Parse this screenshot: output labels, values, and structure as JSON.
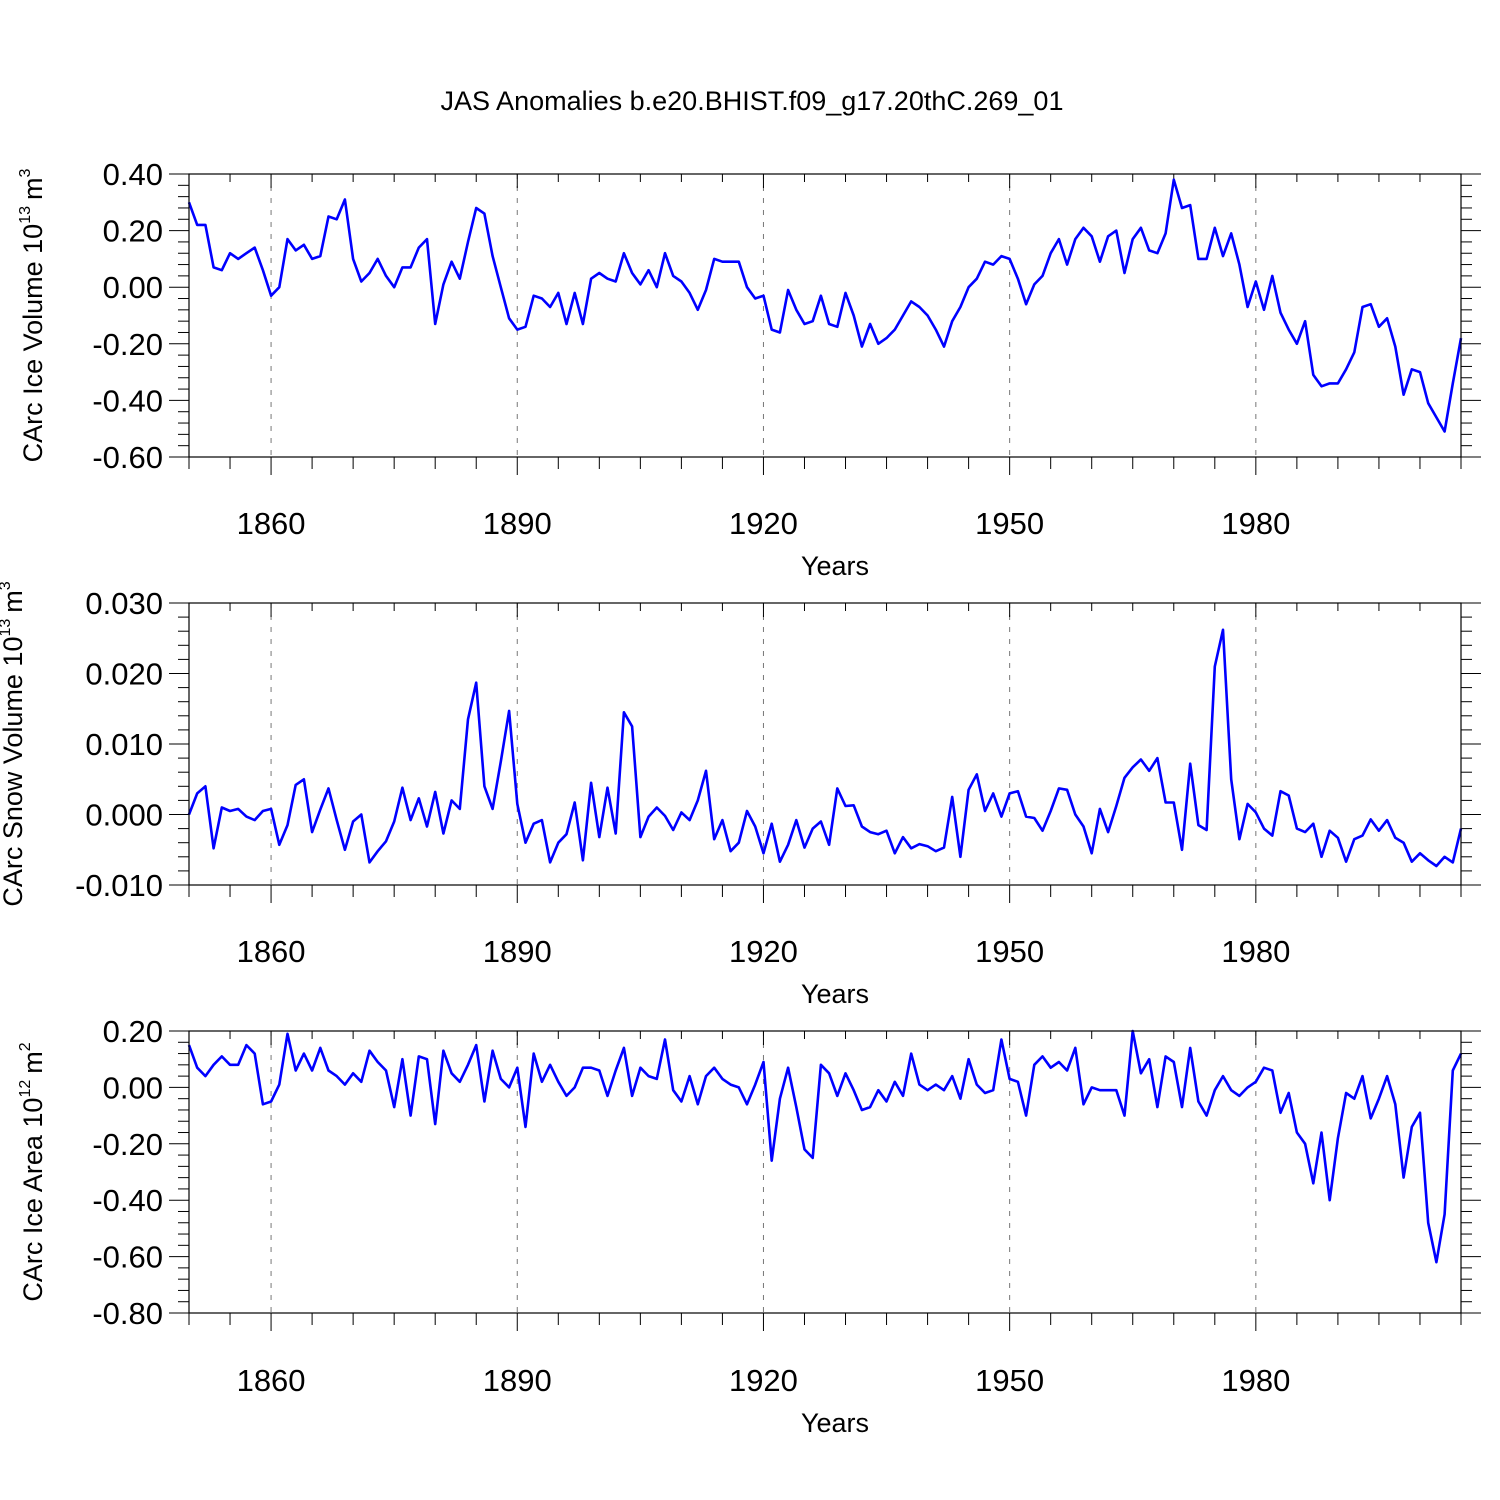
{
  "title": "JAS Anomalies b.e20.BHIST.f09_g17.20thC.269_01",
  "chart_data": [
    {
      "type": "line",
      "ylabel": "CArc Ice Volume 10",
      "ylabel_exp": "13",
      "ylabel_unit": "m",
      "ylabel_unit_exp": "3",
      "xlabel": "Years",
      "xlim": [
        1850,
        2005
      ],
      "ylim": [
        -0.6,
        0.4
      ],
      "y_ticks": [
        0.4,
        0.2,
        0.0,
        -0.2,
        -0.4,
        -0.6
      ],
      "y_tick_labels": [
        "0.40",
        "0.20",
        "0.00",
        "-0.20",
        "-0.40",
        "-0.60"
      ],
      "x_ticks": [
        1860,
        1890,
        1920,
        1950,
        1980
      ],
      "x_tick_labels": [
        "1860",
        "1890",
        "1920",
        "1950",
        "1980"
      ],
      "grid": "vertical dashed at major x ticks",
      "color": "#0000ff",
      "x_start": 1850,
      "values": [
        0.3,
        0.22,
        0.22,
        0.07,
        0.06,
        0.12,
        0.1,
        0.12,
        0.14,
        0.06,
        -0.03,
        0.0,
        0.17,
        0.13,
        0.15,
        0.1,
        0.11,
        0.25,
        0.24,
        0.31,
        0.1,
        0.02,
        0.05,
        0.1,
        0.04,
        0.0,
        0.07,
        0.07,
        0.14,
        0.17,
        -0.13,
        0.01,
        0.09,
        0.03,
        0.16,
        0.28,
        0.26,
        0.11,
        0.0,
        -0.11,
        -0.15,
        -0.14,
        -0.03,
        -0.04,
        -0.07,
        -0.02,
        -0.13,
        -0.02,
        -0.13,
        0.03,
        0.05,
        0.03,
        0.02,
        0.12,
        0.05,
        0.01,
        0.06,
        0.0,
        0.12,
        0.04,
        0.02,
        -0.02,
        -0.08,
        -0.01,
        0.1,
        0.09,
        0.09,
        0.09,
        0.0,
        -0.04,
        -0.03,
        -0.15,
        -0.16,
        -0.01,
        -0.08,
        -0.13,
        -0.12,
        -0.03,
        -0.13,
        -0.14,
        -0.02,
        -0.1,
        -0.21,
        -0.13,
        -0.2,
        -0.18,
        -0.15,
        -0.1,
        -0.05,
        -0.07,
        -0.1,
        -0.15,
        -0.21,
        -0.12,
        -0.07,
        0.0,
        0.03,
        0.09,
        0.08,
        0.11,
        0.1,
        0.03,
        -0.06,
        0.01,
        0.04,
        0.12,
        0.17,
        0.08,
        0.17,
        0.21,
        0.18,
        0.09,
        0.18,
        0.2,
        0.05,
        0.17,
        0.21,
        0.13,
        0.12,
        0.19,
        0.38,
        0.28,
        0.29,
        0.1,
        0.1,
        0.21,
        0.11,
        0.19,
        0.08,
        -0.07,
        0.02,
        -0.08,
        0.04,
        -0.09,
        -0.15,
        -0.2,
        -0.12,
        -0.31,
        -0.35,
        -0.34,
        -0.34,
        -0.29,
        -0.23,
        -0.07,
        -0.06,
        -0.14,
        -0.11,
        -0.21,
        -0.38,
        -0.29,
        -0.3,
        -0.41,
        -0.46,
        -0.51,
        -0.34,
        -0.18
      ]
    },
    {
      "type": "line",
      "ylabel": "CArc Snow Volume 10",
      "ylabel_exp": "13",
      "ylabel_unit": "m",
      "ylabel_unit_exp": "3",
      "xlabel": "Years",
      "xlim": [
        1850,
        2005
      ],
      "ylim": [
        -0.01,
        0.03
      ],
      "y_ticks": [
        0.03,
        0.02,
        0.01,
        0.0,
        -0.01
      ],
      "y_tick_labels": [
        "0.030",
        "0.020",
        "0.010",
        "0.000",
        "-0.010"
      ],
      "x_ticks": [
        1860,
        1890,
        1920,
        1950,
        1980
      ],
      "x_tick_labels": [
        "1860",
        "1890",
        "1920",
        "1950",
        "1980"
      ],
      "grid": "vertical dashed at major x ticks",
      "color": "#0000ff",
      "x_start": 1850,
      "values": [
        0.0,
        0.003,
        0.004,
        -0.0048,
        0.001,
        0.0005,
        0.0008,
        -0.0003,
        -0.0008,
        0.0005,
        0.0008,
        -0.0043,
        -0.0015,
        0.0042,
        0.005,
        -0.0025,
        0.0007,
        0.0037,
        -0.0008,
        -0.005,
        -0.001,
        0.0,
        -0.0068,
        -0.0052,
        -0.0038,
        -0.001,
        0.0038,
        -0.0008,
        0.0023,
        -0.0017,
        0.0032,
        -0.0027,
        0.002,
        0.0008,
        0.0135,
        0.0187,
        0.004,
        0.0008,
        0.0075,
        0.0147,
        0.0015,
        -0.004,
        -0.0013,
        -0.0008,
        -0.0068,
        -0.004,
        -0.0028,
        0.0017,
        -0.0065,
        0.0045,
        -0.0032,
        0.0038,
        -0.0027,
        0.0145,
        0.0125,
        -0.0032,
        -0.0003,
        0.001,
        -0.0002,
        -0.0022,
        0.0003,
        -0.0008,
        0.002,
        0.0062,
        -0.0035,
        -0.0008,
        -0.0052,
        -0.004,
        0.0005,
        -0.0017,
        -0.0055,
        -0.0013,
        -0.0067,
        -0.0043,
        -0.0008,
        -0.0047,
        -0.002,
        -0.001,
        -0.0043,
        0.0037,
        0.0012,
        0.0013,
        -0.0017,
        -0.0025,
        -0.0028,
        -0.0023,
        -0.0055,
        -0.0032,
        -0.0048,
        -0.0042,
        -0.0045,
        -0.0052,
        -0.0047,
        0.0025,
        -0.006,
        0.0035,
        0.0057,
        0.0005,
        0.003,
        -0.0003,
        0.003,
        0.0033,
        -0.0003,
        -0.0005,
        -0.0023,
        0.0005,
        0.0037,
        0.0035,
        0.0,
        -0.0017,
        -0.0055,
        0.0008,
        -0.0025,
        0.0012,
        0.0052,
        0.0067,
        0.0078,
        0.0062,
        0.008,
        0.0017,
        0.0017,
        -0.005,
        0.0072,
        -0.0015,
        -0.0022,
        0.021,
        0.0262,
        0.005,
        -0.0035,
        0.0015,
        0.0003,
        -0.002,
        -0.003,
        0.0033,
        0.0027,
        -0.002,
        -0.0025,
        -0.0013,
        -0.006,
        -0.0023,
        -0.0033,
        -0.0067,
        -0.0035,
        -0.003,
        -0.0007,
        -0.0023,
        -0.0008,
        -0.0033,
        -0.004,
        -0.0067,
        -0.0055,
        -0.0065,
        -0.0073,
        -0.006,
        -0.0068,
        -0.002
      ]
    },
    {
      "type": "line",
      "ylabel": "CArc Ice Area 10",
      "ylabel_exp": "12",
      "ylabel_unit": "m",
      "ylabel_unit_exp": "2",
      "xlabel": "Years",
      "xlim": [
        1850,
        2005
      ],
      "ylim": [
        -0.8,
        0.2
      ],
      "y_ticks": [
        0.2,
        0.0,
        -0.2,
        -0.4,
        -0.6,
        -0.8
      ],
      "y_tick_labels": [
        "0.20",
        "0.00",
        "-0.20",
        "-0.40",
        "-0.60",
        "-0.80"
      ],
      "x_ticks": [
        1860,
        1890,
        1920,
        1950,
        1980
      ],
      "x_tick_labels": [
        "1860",
        "1890",
        "1920",
        "1950",
        "1980"
      ],
      "grid": "vertical dashed at major x ticks",
      "color": "#0000ff",
      "x_start": 1850,
      "values": [
        0.15,
        0.07,
        0.04,
        0.08,
        0.11,
        0.08,
        0.08,
        0.15,
        0.12,
        -0.06,
        -0.05,
        0.01,
        0.19,
        0.06,
        0.12,
        0.06,
        0.14,
        0.06,
        0.04,
        0.01,
        0.05,
        0.02,
        0.13,
        0.09,
        0.06,
        -0.07,
        0.1,
        -0.1,
        0.11,
        0.1,
        -0.13,
        0.13,
        0.05,
        0.02,
        0.08,
        0.15,
        -0.05,
        0.13,
        0.03,
        0.0,
        0.07,
        -0.14,
        0.12,
        0.02,
        0.08,
        0.02,
        -0.03,
        0.0,
        0.07,
        0.07,
        0.06,
        -0.03,
        0.06,
        0.14,
        -0.03,
        0.07,
        0.04,
        0.03,
        0.17,
        -0.01,
        -0.05,
        0.04,
        -0.06,
        0.04,
        0.07,
        0.03,
        0.01,
        0.0,
        -0.06,
        0.01,
        0.09,
        -0.26,
        -0.04,
        0.07,
        -0.07,
        -0.22,
        -0.25,
        0.08,
        0.05,
        -0.03,
        0.05,
        -0.01,
        -0.08,
        -0.07,
        -0.01,
        -0.05,
        0.02,
        -0.03,
        0.12,
        0.01,
        -0.01,
        0.01,
        -0.01,
        0.04,
        -0.04,
        0.1,
        0.01,
        -0.02,
        -0.01,
        0.17,
        0.03,
        0.02,
        -0.1,
        0.08,
        0.11,
        0.07,
        0.09,
        0.06,
        0.14,
        -0.06,
        0.0,
        -0.01,
        -0.01,
        -0.01,
        -0.1,
        0.2,
        0.05,
        0.1,
        -0.07,
        0.11,
        0.09,
        -0.07,
        0.14,
        -0.05,
        -0.1,
        -0.01,
        0.04,
        -0.01,
        -0.03,
        0.0,
        0.02,
        0.07,
        0.06,
        -0.09,
        -0.02,
        -0.16,
        -0.2,
        -0.34,
        -0.16,
        -0.4,
        -0.18,
        -0.02,
        -0.04,
        0.04,
        -0.11,
        -0.04,
        0.04,
        -0.06,
        -0.32,
        -0.14,
        -0.09,
        -0.48,
        -0.62,
        -0.45,
        0.06,
        0.12
      ]
    }
  ]
}
